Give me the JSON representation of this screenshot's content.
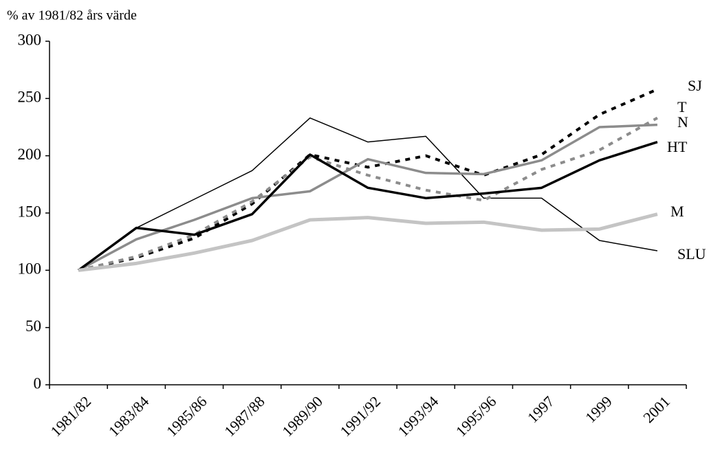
{
  "chart_data": {
    "type": "line",
    "y_label": "% av 1981/82 års värde",
    "categories": [
      "1981/82",
      "1983/84",
      "1985/86",
      "1987/88",
      "1989/90",
      "1991/92",
      "1993/94",
      "1995/96",
      "1997",
      "1999",
      "2001"
    ],
    "ylim": [
      0,
      300
    ],
    "yticks": [
      0,
      50,
      100,
      150,
      200,
      250,
      300
    ],
    "series": [
      {
        "name": "SLU",
        "color": "#000000",
        "width": 1.5,
        "dash": "none",
        "values": [
          100,
          137,
          162,
          187,
          233,
          212,
          217,
          163,
          163,
          126,
          117
        ]
      },
      {
        "name": "SJ",
        "color": "#000000",
        "width": 4,
        "dash": "7 8",
        "values": [
          100,
          111,
          128,
          158,
          201,
          190,
          200,
          183,
          201,
          236,
          258
        ]
      },
      {
        "name": "T",
        "color": "#8c8c8c",
        "width": 4,
        "dash": "7 8",
        "values": [
          100,
          112,
          131,
          160,
          199,
          183,
          170,
          161,
          188,
          205,
          233
        ]
      },
      {
        "name": "N",
        "color": "#8c8c8c",
        "width": 3.5,
        "dash": "none",
        "values": [
          100,
          127,
          144,
          163,
          169,
          197,
          185,
          184,
          196,
          225,
          227
        ]
      },
      {
        "name": "HT",
        "color": "#000000",
        "width": 3.5,
        "dash": "none",
        "values": [
          100,
          137,
          131,
          149,
          201,
          172,
          163,
          167,
          172,
          196,
          212
        ]
      },
      {
        "name": "M",
        "color": "#c4c4c4",
        "width": 5,
        "dash": "none",
        "values": [
          100,
          106,
          115,
          126,
          144,
          146,
          141,
          142,
          135,
          136,
          149
        ]
      }
    ]
  }
}
